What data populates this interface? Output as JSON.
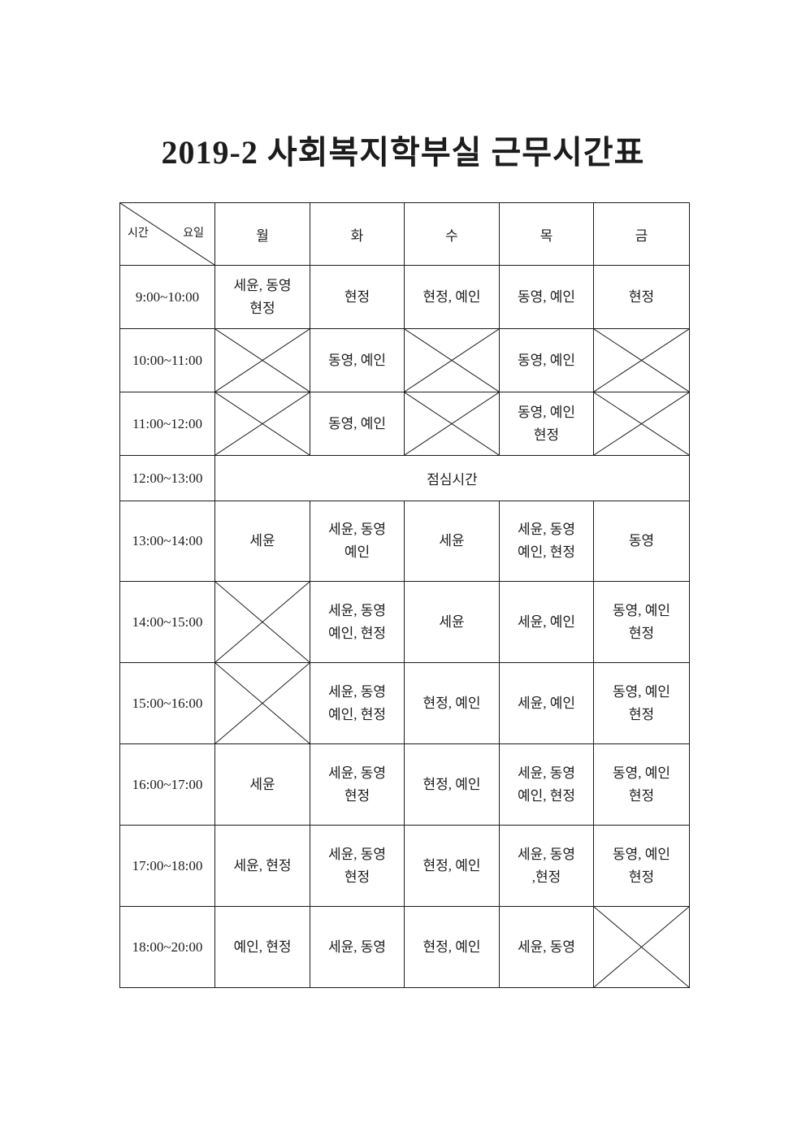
{
  "document": {
    "title": "2019-2 사회복지학부실 근무시간표"
  },
  "table": {
    "corner": {
      "bottom_left_label": "시간",
      "top_right_label": "요일"
    },
    "day_headers": [
      "월",
      "화",
      "수",
      "목",
      "금"
    ],
    "rows": [
      {
        "time": "9:00~10:00",
        "cells": [
          {
            "lines": [
              "세윤, 동영",
              "현정"
            ]
          },
          {
            "lines": [
              "현정"
            ]
          },
          {
            "lines": [
              "현정, 예인"
            ]
          },
          {
            "lines": [
              "동영, 예인"
            ]
          },
          {
            "lines": [
              "현정"
            ]
          }
        ]
      },
      {
        "time": "10:00~11:00",
        "cells": [
          {
            "crossed": true
          },
          {
            "lines": [
              "동영, 예인"
            ]
          },
          {
            "crossed": true
          },
          {
            "lines": [
              "동영, 예인"
            ]
          },
          {
            "crossed": true
          }
        ]
      },
      {
        "time": "11:00~12:00",
        "cells": [
          {
            "crossed": true
          },
          {
            "lines": [
              "동영, 예인"
            ]
          },
          {
            "crossed": true
          },
          {
            "lines": [
              "동영, 예인",
              "현정"
            ]
          },
          {
            "crossed": true
          }
        ]
      },
      {
        "time": "12:00~13:00",
        "merged_text": "점심시간"
      },
      {
        "time": "13:00~14:00",
        "cells": [
          {
            "lines": [
              "세윤"
            ]
          },
          {
            "lines": [
              "세윤, 동영",
              "예인"
            ]
          },
          {
            "lines": [
              "세윤"
            ]
          },
          {
            "lines": [
              "세윤, 동영",
              "예인, 현정"
            ]
          },
          {
            "lines": [
              "동영"
            ]
          }
        ]
      },
      {
        "time": "14:00~15:00",
        "cells": [
          {
            "crossed": true
          },
          {
            "lines": [
              "세윤, 동영",
              "예인, 현정"
            ]
          },
          {
            "lines": [
              "세윤"
            ]
          },
          {
            "lines": [
              "세윤, 예인"
            ]
          },
          {
            "lines": [
              "동영, 예인",
              "현정"
            ]
          }
        ]
      },
      {
        "time": "15:00~16:00",
        "cells": [
          {
            "crossed": true
          },
          {
            "lines": [
              "세윤, 동영",
              "예인, 현정"
            ]
          },
          {
            "lines": [
              "현정, 예인"
            ]
          },
          {
            "lines": [
              "세윤, 예인"
            ]
          },
          {
            "lines": [
              "동영, 예인",
              "현정"
            ]
          }
        ]
      },
      {
        "time": "16:00~17:00",
        "cells": [
          {
            "lines": [
              "세윤"
            ]
          },
          {
            "lines": [
              "세윤, 동영",
              "현정"
            ]
          },
          {
            "lines": [
              "현정, 예인"
            ]
          },
          {
            "lines": [
              "세윤, 동영",
              "예인, 현정"
            ]
          },
          {
            "lines": [
              "동영, 예인",
              "현정"
            ]
          }
        ]
      },
      {
        "time": "17:00~18:00",
        "cells": [
          {
            "lines": [
              "세윤, 현정"
            ]
          },
          {
            "lines": [
              "세윤, 동영",
              "현정"
            ]
          },
          {
            "lines": [
              "현정, 예인"
            ]
          },
          {
            "lines": [
              "세윤, 동영",
              ",현정"
            ]
          },
          {
            "lines": [
              "동영, 예인",
              "현정"
            ]
          }
        ]
      },
      {
        "time": "18:00~20:00",
        "cells": [
          {
            "lines": [
              "예인, 현정"
            ]
          },
          {
            "lines": [
              "세윤, 동영"
            ]
          },
          {
            "lines": [
              "현정, 예인"
            ]
          },
          {
            "lines": [
              "세윤, 동영"
            ]
          },
          {
            "crossed": true
          }
        ]
      }
    ]
  }
}
